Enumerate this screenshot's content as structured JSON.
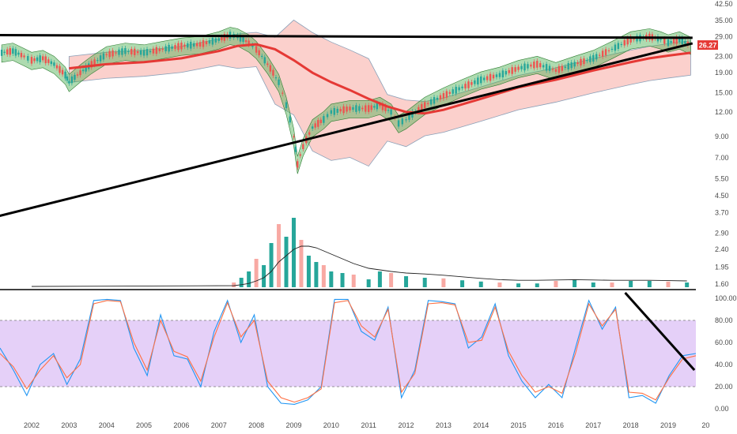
{
  "chart_data": [
    {
      "type": "candlestick",
      "panel": "price",
      "y_scale": "log",
      "ylim": [
        1.5,
        42.5
      ],
      "y_ticks": [
        "42.50",
        "35.00",
        "29.00",
        "23.00",
        "19.00",
        "15.00",
        "12.00",
        "9.00",
        "7.00",
        "5.50",
        "4.50",
        "3.70",
        "2.90",
        "2.40",
        "1.95",
        "1.60"
      ],
      "x_ticks": [
        "2002",
        "2003",
        "2004",
        "2005",
        "2006",
        "2007",
        "2008",
        "2009",
        "2010",
        "2011",
        "2012",
        "2013",
        "2014",
        "2015",
        "2016",
        "2017",
        "2018",
        "2019",
        "20"
      ],
      "last_price": "26.27",
      "colors": {
        "up": "#26a69a",
        "down": "#ef5350",
        "ma": "#e53935",
        "envelope_fill": "#4caf50",
        "bollinger_fill": "#f8a9a3",
        "trendline": "#000000"
      },
      "price_series": {
        "x": [
          2001.2,
          2001.5,
          2001.8,
          2002.0,
          2002.3,
          2002.6,
          2002.9,
          2003.0,
          2003.3,
          2003.6,
          2004.0,
          2004.5,
          2005.0,
          2005.5,
          2006.0,
          2006.5,
          2007.0,
          2007.3,
          2007.5,
          2007.8,
          2008.0,
          2008.3,
          2008.6,
          2008.8,
          2009.0,
          2009.1,
          2009.25,
          2009.5,
          2009.8,
          2010.0,
          2010.5,
          2011.0,
          2011.3,
          2011.6,
          2011.8,
          2012.0,
          2012.5,
          2013.0,
          2013.5,
          2014.0,
          2014.5,
          2015.0,
          2015.5,
          2016.0,
          2016.5,
          2017.0,
          2017.5,
          2018.0,
          2018.5,
          2018.8,
          2019.0,
          2019.3,
          2019.6
        ],
        "close": [
          24,
          24.5,
          23,
          22,
          22.5,
          21,
          18.5,
          17,
          19,
          21,
          23.5,
          24.5,
          24,
          25,
          26,
          26.5,
          28,
          29.5,
          29,
          27,
          25,
          21,
          17,
          13,
          9,
          6.5,
          8,
          10,
          11,
          12,
          12.5,
          12.5,
          13,
          12,
          10.5,
          11,
          13,
          14.5,
          16,
          17.5,
          18.5,
          20,
          21,
          19.5,
          21,
          22.5,
          25,
          28,
          29,
          28,
          27,
          28,
          26.27
        ]
      },
      "ma_series": {
        "x": [
          2003.0,
          2004.0,
          2005.0,
          2006.0,
          2007.0,
          2007.5,
          2008.0,
          2008.5,
          2009.0,
          2009.5,
          2010.0,
          2010.5,
          2011.0,
          2011.5,
          2012.0,
          2012.5,
          2013.0,
          2014.0,
          2015.0,
          2016.0,
          2017.0,
          2018.0,
          2018.5,
          2019.0,
          2019.6
        ],
        "values": [
          20,
          21,
          21.5,
          22.5,
          24.5,
          26,
          26.5,
          25,
          22,
          19,
          17,
          15.5,
          14,
          12.8,
          12,
          11.8,
          12.3,
          14,
          16,
          17.5,
          19.5,
          21.5,
          22.5,
          23.2,
          24
        ]
      },
      "trendlines": [
        {
          "x": [
            2001.0,
            2019.65
          ],
          "y": [
            29.5,
            28.6
          ]
        },
        {
          "x": [
            2001.0,
            2019.65
          ],
          "y": [
            3.5,
            26.8
          ]
        }
      ]
    },
    {
      "type": "bar",
      "panel": "volume",
      "x": [
        2007.4,
        2007.6,
        2007.8,
        2008.0,
        2008.2,
        2008.4,
        2008.6,
        2008.8,
        2009.0,
        2009.2,
        2009.4,
        2009.6,
        2009.8,
        2010.0,
        2010.3,
        2010.6,
        2011.0,
        2011.3,
        2011.6,
        2012.0,
        2012.5,
        2013.0,
        2013.5,
        2014.0,
        2014.5,
        2015.0,
        2015.5,
        2016.0,
        2016.5,
        2017.0,
        2017.5,
        2018.0,
        2018.5,
        2019.0,
        2019.5
      ],
      "values": [
        0.15,
        0.3,
        0.5,
        0.9,
        0.7,
        1.4,
        2.0,
        1.6,
        2.2,
        1.5,
        1.0,
        0.8,
        0.7,
        0.5,
        0.45,
        0.4,
        0.25,
        0.5,
        0.45,
        0.35,
        0.3,
        0.28,
        0.22,
        0.18,
        0.15,
        0.12,
        0.12,
        0.2,
        0.25,
        0.15,
        0.15,
        0.2,
        0.2,
        0.18,
        0.15
      ],
      "avg_line": [
        0.05,
        0.08,
        0.12,
        0.2,
        0.3,
        0.5,
        0.8,
        1.0,
        1.2,
        1.3,
        1.3,
        1.25,
        1.15,
        1.05,
        0.9,
        0.75,
        0.6,
        0.55,
        0.5,
        0.45,
        0.42,
        0.38,
        0.33,
        0.28,
        0.24,
        0.22,
        0.22,
        0.23,
        0.24,
        0.23,
        0.22,
        0.22,
        0.22,
        0.21,
        0.2
      ]
    },
    {
      "type": "line",
      "panel": "stochastic",
      "ylim": [
        0,
        100
      ],
      "y_ticks": [
        "100.00",
        "80.00",
        "60.00",
        "40.00",
        "20.00",
        "0.00"
      ],
      "band": [
        20,
        80
      ],
      "series": [
        {
          "color": "#2196f3",
          "values": [
            55,
            35,
            12,
            40,
            50,
            22,
            45,
            98,
            99,
            98,
            55,
            30,
            85,
            48,
            45,
            20,
            70,
            98,
            60,
            85,
            20,
            5,
            4,
            8,
            20,
            99,
            99,
            70,
            62,
            92,
            10,
            35,
            98,
            97,
            95,
            55,
            65,
            95,
            48,
            25,
            10,
            22,
            10,
            55,
            98,
            72,
            92,
            10,
            12,
            5,
            30,
            48,
            50
          ]
        },
        {
          "color": "#ff7043",
          "values": [
            50,
            38,
            18,
            35,
            48,
            28,
            40,
            95,
            98,
            97,
            60,
            35,
            80,
            52,
            47,
            25,
            65,
            96,
            65,
            80,
            25,
            10,
            6,
            10,
            18,
            96,
            98,
            75,
            65,
            90,
            15,
            32,
            95,
            96,
            94,
            60,
            62,
            92,
            52,
            30,
            15,
            20,
            14,
            50,
            95,
            75,
            90,
            15,
            14,
            8,
            28,
            45,
            48
          ]
        }
      ],
      "trendline": {
        "x": [
          2017.85,
          2019.7
        ],
        "y": [
          105,
          35
        ]
      }
    }
  ]
}
